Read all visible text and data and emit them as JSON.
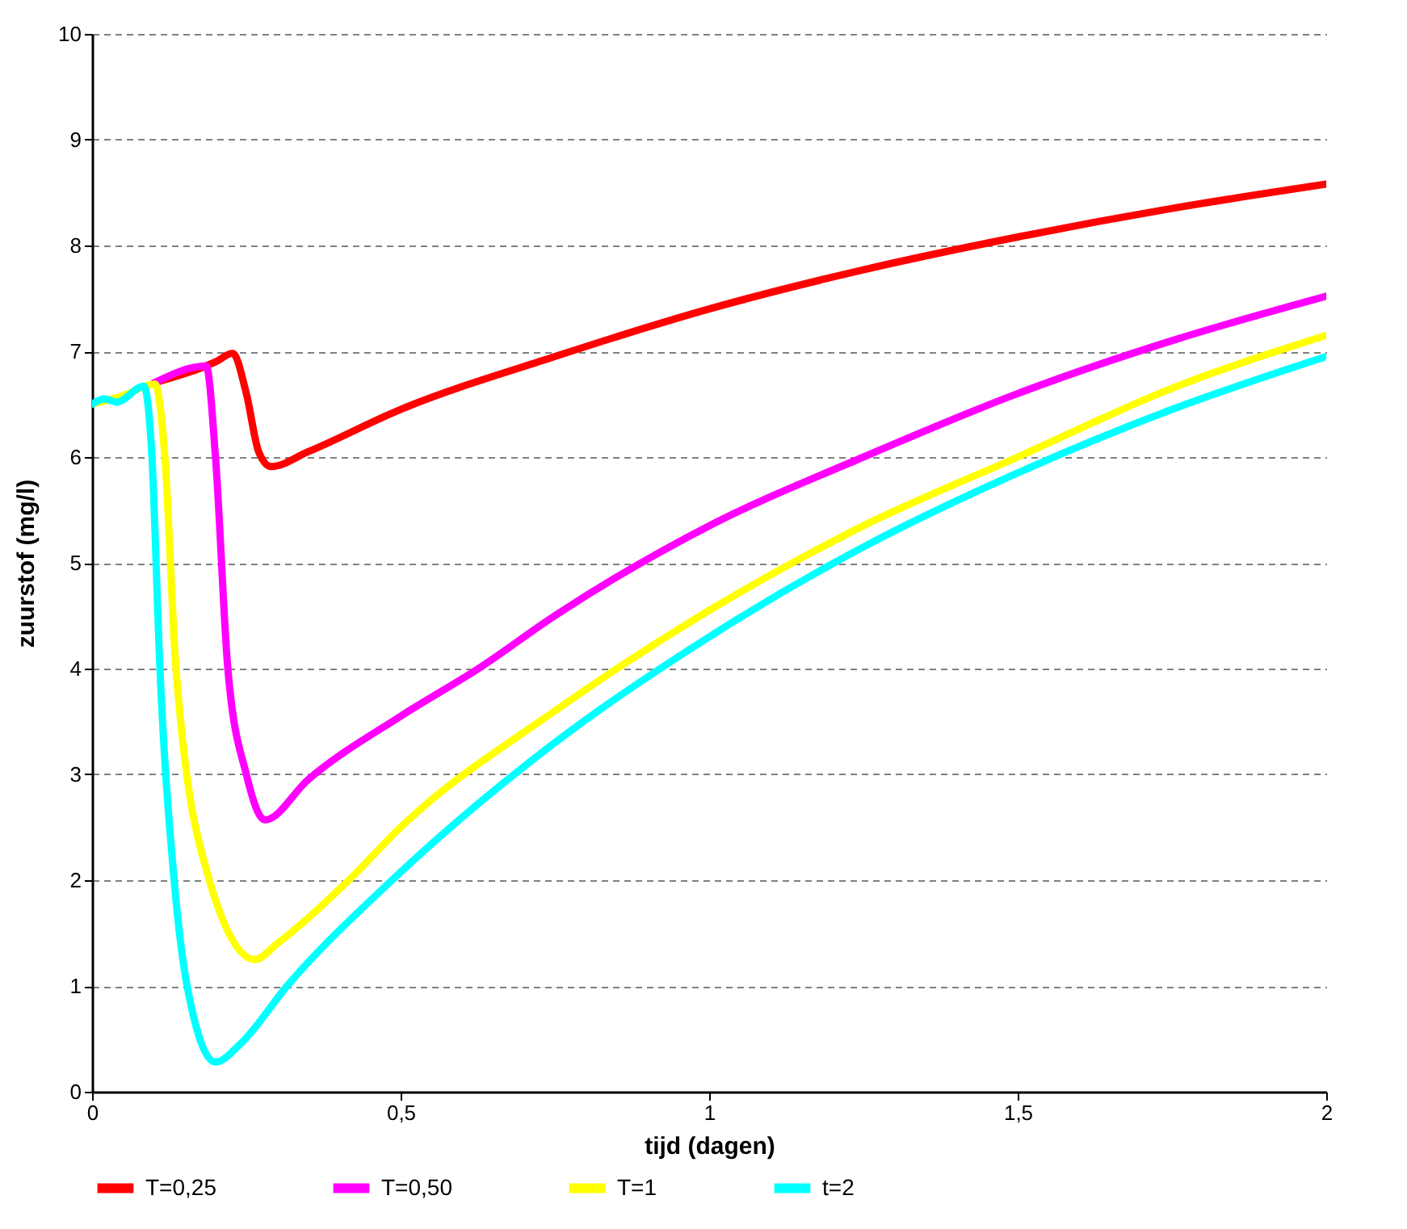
{
  "chart_data": {
    "type": "line",
    "xlabel": "tijd (dagen)",
    "ylabel": "zuurstof  (mg/l)",
    "xlim": [
      0,
      2
    ],
    "xticks": [
      0,
      {
        "value": 0.5,
        "label": "0,5"
      },
      1,
      {
        "value": 1.5,
        "label": "1,5"
      },
      2
    ],
    "ylim": [
      0,
      10
    ],
    "yticks": [
      0,
      1,
      2,
      3,
      4,
      5,
      6,
      7,
      8,
      9,
      10
    ],
    "grid": "y",
    "legend": "bottom",
    "line_style": "solid",
    "series": [
      {
        "name": "T=0,25",
        "color": "#ff0000",
        "x": [
          0.1,
          0.2,
          0.228,
          0.25,
          0.27,
          0.29,
          0.35,
          0.5,
          0.75,
          1,
          1.25,
          1.5,
          1.75,
          2
        ],
        "values": [
          6.7,
          6.9,
          6.98,
          6.6,
          6.05,
          5.91,
          6.05,
          6.45,
          6.95,
          7.4,
          7.77,
          8.08,
          8.35,
          8.58
        ]
      },
      {
        "name": "T=0,50",
        "color": "#ff00ff",
        "x": [
          0.1,
          0.185,
          0.2,
          0.22,
          0.25,
          0.28,
          0.35,
          0.5,
          0.626,
          0.75,
          1,
          1.25,
          1.5,
          1.75,
          2
        ],
        "values": [
          6.7,
          6.86,
          6.0,
          4.0,
          3.0,
          2.57,
          2.95,
          3.55,
          4.0,
          4.5,
          5.35,
          6.0,
          6.6,
          7.1,
          7.52
        ]
      },
      {
        "name": "T=1",
        "color": "#ffff00",
        "x": [
          0,
          0.05,
          0.102,
          0.118,
          0.136,
          0.19,
          0.264,
          0.3,
          0.416,
          0.5,
          0.75,
          1,
          1.25,
          1.5,
          1.75,
          2
        ],
        "values": [
          6.5,
          6.58,
          6.69,
          6.0,
          4.0,
          2.0,
          1.25,
          1.4,
          2.0,
          2.5,
          3.6,
          4.55,
          5.35,
          6.0,
          6.65,
          7.15
        ]
      },
      {
        "name": "t=2",
        "color": "#00ffff",
        "x": [
          0,
          0.02,
          0.04,
          0.084,
          0.097,
          0.11,
          0.133,
          0.154,
          0.2,
          0.24,
          0.316,
          0.486,
          0.75,
          1,
          1.25,
          1.5,
          1.75,
          2
        ],
        "values": [
          6.5,
          6.55,
          6.52,
          6.67,
          6.0,
          4.0,
          2.0,
          1.0,
          0.28,
          0.45,
          1.0,
          2.0,
          3.3,
          4.3,
          5.15,
          5.85,
          6.45,
          6.95
        ]
      }
    ]
  }
}
